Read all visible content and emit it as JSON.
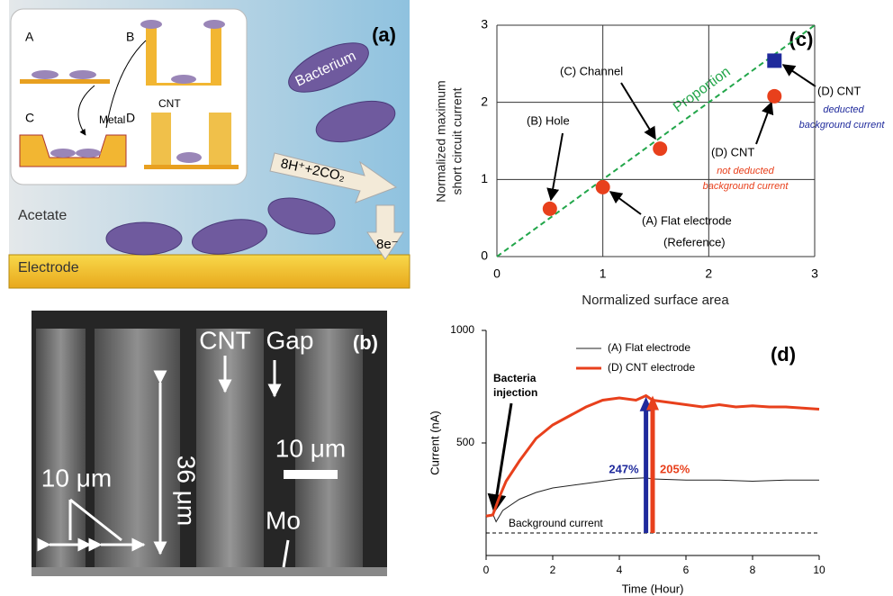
{
  "panel_a": {
    "label": "(a)",
    "inset_labels": [
      "A",
      "B",
      "C",
      "D"
    ],
    "metal": "Metal",
    "cnt": "CNT",
    "bacterium": "Bacterium",
    "reaction": "8H⁺+2CO₂",
    "acetate": "Acetate",
    "electrode": "Electrode",
    "electrons": "8e⁻"
  },
  "panel_b": {
    "label": "(b)",
    "cnt": "CNT",
    "gap": "Gap",
    "scale": "10 μm",
    "width": "10 μm",
    "height": "36 μm",
    "mo": "Mo"
  },
  "chart_data": [
    {
      "type": "scatter",
      "title": "(c)",
      "x_label": "Normalized surface area",
      "y_label": [
        "Normalized maximum",
        "short circuit current"
      ],
      "xlim": [
        0,
        3
      ],
      "ylim": [
        0,
        3
      ],
      "xticks": [
        0,
        1,
        2,
        3
      ],
      "yticks": [
        0,
        1,
        2,
        3
      ],
      "grid": true,
      "series": [
        {
          "color": "#e8401c",
          "marker": "circle",
          "x": [
            0.5,
            1.0,
            1.54,
            2.62
          ],
          "values": [
            0.62,
            0.9,
            1.4,
            2.08
          ]
        },
        {
          "color": "#1f2a9c",
          "marker": "square",
          "x": [
            2.62
          ],
          "values": [
            2.54
          ]
        }
      ],
      "reference_line": {
        "label": "Proportion",
        "color": "#22a64a"
      },
      "annotations": [
        "(B) Hole",
        "(C) Channel",
        "(A) Flat electrode",
        "(Reference)",
        "(D) CNT",
        "not deducted",
        "background current",
        "(D) CNT",
        "deducted",
        "background current"
      ]
    },
    {
      "type": "line",
      "title": "(d)",
      "x_label": "Time (Hour)",
      "y_label": "Current (nA)",
      "xlim": [
        0,
        10
      ],
      "ylim": [
        0,
        1000
      ],
      "xticks": [
        0,
        2,
        4,
        6,
        8,
        10
      ],
      "yticks": [
        500,
        1000
      ],
      "legend": "top",
      "series": [
        {
          "name": "(A) Flat electrode",
          "color": "#222222",
          "width": 1,
          "x": [
            0,
            0.2,
            0.3,
            0.5,
            1,
            1.5,
            2,
            3,
            4,
            4.8,
            5,
            6,
            7,
            8,
            9,
            10
          ],
          "values": [
            170,
            185,
            150,
            200,
            250,
            280,
            300,
            320,
            340,
            345,
            340,
            335,
            335,
            330,
            335,
            335
          ]
        },
        {
          "name": "(D) CNT electrode",
          "color": "#e8401c",
          "width": 3,
          "x": [
            0,
            0.2,
            0.4,
            0.6,
            1,
            1.5,
            2,
            2.5,
            3,
            3.5,
            4,
            4.5,
            4.8,
            5,
            5.5,
            6,
            6.5,
            7,
            7.5,
            8,
            8.5,
            9,
            9.5,
            10
          ],
          "values": [
            175,
            180,
            260,
            330,
            420,
            520,
            580,
            620,
            660,
            690,
            700,
            690,
            710,
            690,
            680,
            670,
            660,
            670,
            660,
            665,
            660,
            660,
            655,
            650
          ]
        }
      ],
      "background": {
        "label": "Background current",
        "value": 100
      },
      "arrows": [
        {
          "label": "247%",
          "x": 4.8,
          "from": 100,
          "to": 705,
          "color": "#1f2a9c"
        },
        {
          "label": "205%",
          "x": 5.0,
          "from": 100,
          "to": 710,
          "color": "#e8401c"
        }
      ],
      "injection": [
        "Bacteria",
        "injection"
      ]
    }
  ]
}
